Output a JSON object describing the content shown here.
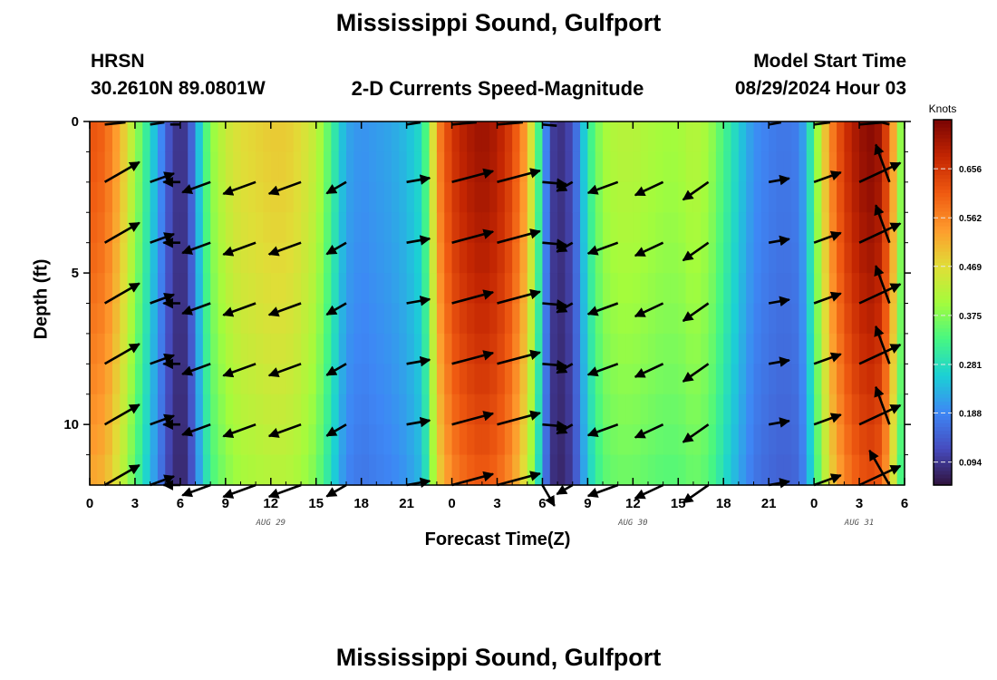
{
  "header": {
    "title": "Mississippi Sound, Gulfport",
    "model": "HRSN",
    "coords": "30.2610N  89.0801W",
    "product": "2-D Currents Speed-Magnitude",
    "start_label": "Model Start Time",
    "start_time": "08/29/2024 Hour 03"
  },
  "footer": {
    "title": "Mississippi Sound, Gulfport"
  },
  "chart_data": {
    "type": "heatmap",
    "title": "2-D Currents Speed-Magnitude",
    "xlabel": "Forecast Time(Z)",
    "ylabel": "Depth (ft)",
    "x_range_hours": [
      0,
      54
    ],
    "y_range_ft": [
      0,
      12
    ],
    "x_tick_labels": [
      "0",
      "3",
      "6",
      "9",
      "12",
      "15",
      "18",
      "21",
      "0",
      "3",
      "6",
      "9",
      "12",
      "15",
      "18",
      "21",
      "0",
      "3",
      "6"
    ],
    "y_ticks": [
      0,
      5,
      10
    ],
    "date_labels": [
      {
        "text": "AUG 29",
        "hour": 12
      },
      {
        "text": "AUG 30",
        "hour": 36
      },
      {
        "text": "AUG 31",
        "hour": 51
      }
    ],
    "colorbar": {
      "label": "Knots",
      "min": 0.05,
      "max": 0.75,
      "ticks": [
        0.656,
        0.562,
        0.469,
        0.375,
        0.281,
        0.188,
        0.094
      ],
      "tick_labels": [
        "0.656",
        "0.562",
        "0.469",
        "0.375",
        "0.281",
        "0.188",
        "0.094"
      ]
    },
    "speed_profile": {
      "hours": [
        0,
        1,
        2,
        3,
        4,
        5,
        5.5,
        6,
        6.5,
        7,
        7.5,
        8,
        9,
        10,
        11,
        12,
        13,
        14,
        15,
        15.7,
        16.5,
        17,
        18,
        19,
        20,
        21,
        22,
        22.5,
        23,
        24,
        25,
        26,
        27,
        28,
        29,
        29.5,
        30,
        30.5,
        31,
        32,
        33,
        34,
        35,
        36,
        37,
        38,
        39,
        39.6,
        40,
        41,
        42,
        43,
        44,
        45,
        46,
        47,
        47.5,
        48,
        49,
        50,
        51,
        52,
        52.5,
        53,
        53.7,
        54
      ],
      "speed_knots": [
        0.62,
        0.6,
        0.52,
        0.4,
        0.28,
        0.16,
        0.1,
        0.09,
        0.1,
        0.2,
        0.3,
        0.38,
        0.44,
        0.47,
        0.48,
        0.49,
        0.49,
        0.47,
        0.43,
        0.36,
        0.27,
        0.22,
        0.2,
        0.21,
        0.22,
        0.24,
        0.28,
        0.38,
        0.55,
        0.66,
        0.7,
        0.72,
        0.7,
        0.64,
        0.52,
        0.4,
        0.25,
        0.12,
        0.08,
        0.12,
        0.3,
        0.4,
        0.42,
        0.42,
        0.41,
        0.4,
        0.4,
        0.41,
        0.42,
        0.4,
        0.33,
        0.26,
        0.2,
        0.18,
        0.17,
        0.18,
        0.24,
        0.35,
        0.55,
        0.66,
        0.72,
        0.74,
        0.7,
        0.6,
        0.4,
        0.32
      ],
      "depth_factor_at_bottom": 0.85
    },
    "arrows": {
      "hours": [
        1,
        4,
        6,
        8,
        11,
        14,
        17,
        21,
        24,
        27,
        30,
        32,
        35,
        38,
        41,
        45,
        48,
        51,
        53
      ],
      "depths_ft": [
        2,
        4,
        6,
        8,
        10,
        12
      ],
      "direction_deg": [
        60,
        70,
        270,
        250,
        250,
        250,
        240,
        80,
        75,
        75,
        95,
        240,
        250,
        245,
        235,
        80,
        70,
        65,
        340
      ],
      "bottom_direction_deg": [
        null,
        null,
        null,
        null,
        null,
        null,
        null,
        null,
        null,
        null,
        150,
        null,
        null,
        null,
        null,
        null,
        null,
        null,
        330
      ],
      "length_scale": 1.0
    }
  }
}
